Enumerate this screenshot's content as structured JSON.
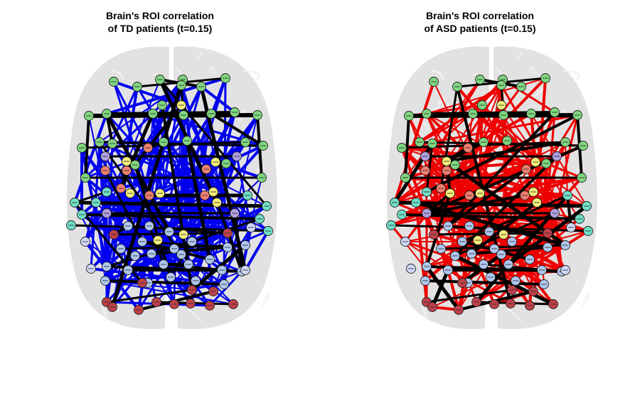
{
  "figure": {
    "panels": [
      {
        "id": "td",
        "title_line1": "Brain's ROI correlation",
        "title_line2": "of TD patients (t=0.15)",
        "edge_color_main": "#0000ee",
        "edge_color_strong": "#000000"
      },
      {
        "id": "asd",
        "title_line1": "Brain's ROI correlation",
        "title_line2": "of ASD patients (t=0.15)",
        "edge_color_main": "#ee0000",
        "edge_color_strong": "#000000"
      }
    ],
    "node_colors": {
      "frontal": "#7fd77f",
      "temporal": "#70e0c8",
      "limbic": "#f08070",
      "insula": "#b0a0e0",
      "subcortical": "#f5f07a",
      "parietal": "#b0c8f0",
      "occipital": "#c0404a",
      "cerebellar": "#d0d8f8"
    },
    "brain_fill": "#d8d8d8"
  }
}
